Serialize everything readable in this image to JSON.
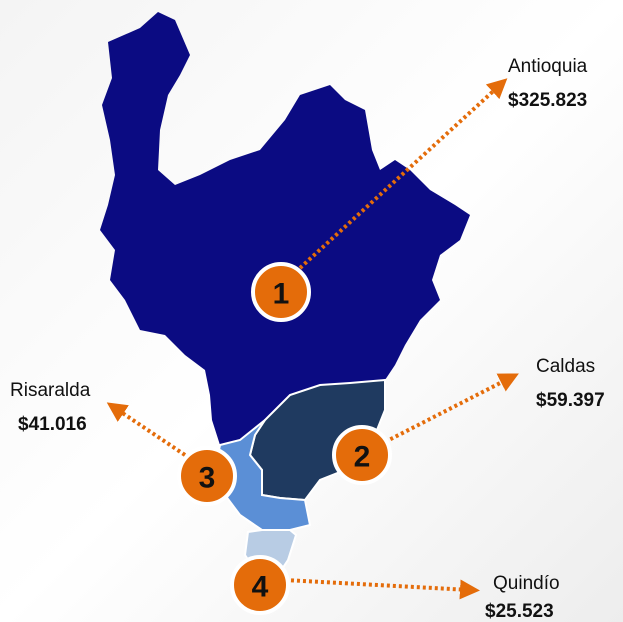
{
  "regions": [
    {
      "rank": 1,
      "name": "Antioquia",
      "value": "$325.823"
    },
    {
      "rank": 2,
      "name": "Caldas",
      "value": "$59.397"
    },
    {
      "rank": 3,
      "name": "Risaralda",
      "value": "$41.016"
    },
    {
      "rank": 4,
      "name": "Quindío",
      "value": "$25.523"
    }
  ]
}
